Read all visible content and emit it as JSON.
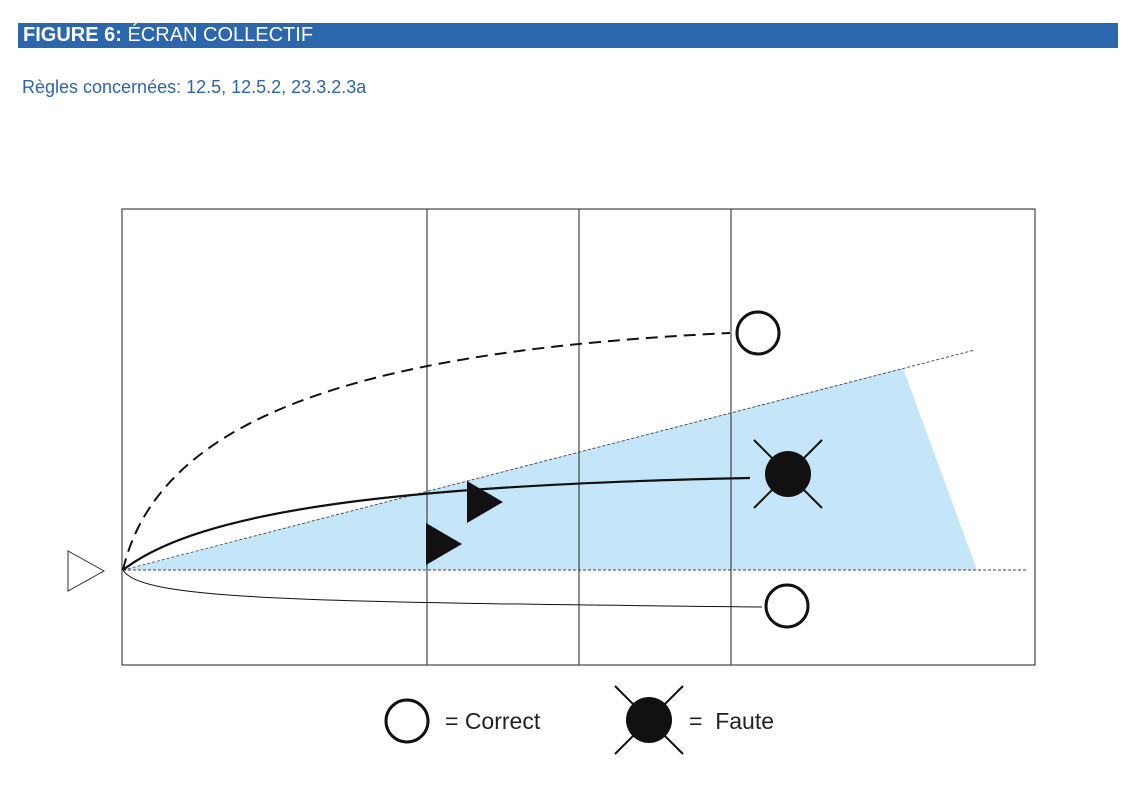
{
  "header": {
    "figure_label": "FIGURE 6:",
    "figure_title": " ÉCRAN COLLECTIF",
    "rules": "Règles concernées: 12.5, 12.5.2, 23.3.2.3a"
  },
  "legend": {
    "correct_text": "= Correct",
    "fault_text": "=  Faute"
  },
  "colors": {
    "header_bar": "#2c66ad",
    "subtitle": "#2c66ad",
    "screen_area": "#c5e5f8",
    "lines": "#222222"
  },
  "icons": {
    "correct": "open-circle-icon",
    "fault": "filled-circle-with-cross-icon",
    "player": "filled-triangle-icon",
    "server": "open-triangle-icon"
  }
}
